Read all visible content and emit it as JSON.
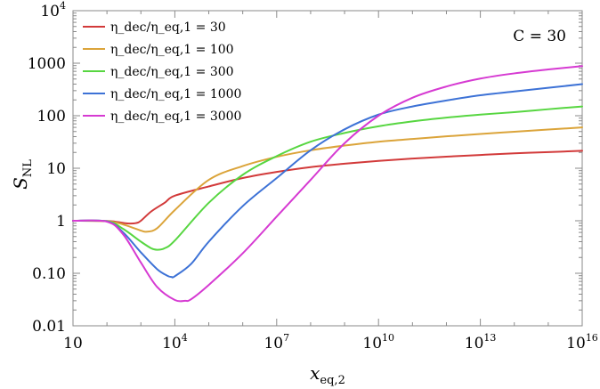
{
  "chart_data": {
    "type": "line",
    "xlabel": "x_eq,2",
    "ylabel": "S_NL",
    "xscale": "log",
    "yscale": "log",
    "xlim": [
      10,
      1e+16
    ],
    "ylim": [
      0.01,
      10000
    ],
    "x_ticks": [
      {
        "value": 10,
        "base": "10",
        "exp": ""
      },
      {
        "value": 10000,
        "base": "10",
        "exp": "4"
      },
      {
        "value": 10000000.0,
        "base": "10",
        "exp": "7"
      },
      {
        "value": 10000000000.0,
        "base": "10",
        "exp": "10"
      },
      {
        "value": 10000000000000.0,
        "base": "10",
        "exp": "13"
      },
      {
        "value": 1e+16,
        "base": "10",
        "exp": "16"
      }
    ],
    "y_ticks": [
      {
        "value": 0.01,
        "base": "0.01",
        "exp": ""
      },
      {
        "value": 0.1,
        "base": "0.10",
        "exp": ""
      },
      {
        "value": 1,
        "base": "1",
        "exp": ""
      },
      {
        "value": 10,
        "base": "10",
        "exp": ""
      },
      {
        "value": 100,
        "base": "100",
        "exp": ""
      },
      {
        "value": 1000,
        "base": "1000",
        "exp": ""
      },
      {
        "value": 10000,
        "base": "10",
        "exp": "4"
      }
    ],
    "legend_position": "top-left",
    "annotation": "C = 30",
    "series": [
      {
        "name": "η_dec/η_eq,1 = 30",
        "color": "#d23a3a",
        "x": [
          10,
          100,
          200,
          400,
          700,
          1000,
          2000,
          5000,
          10000,
          100000.0,
          1000000.0,
          10000000.0,
          100000000.0,
          1000000000.0,
          10000000000.0,
          100000000000.0,
          1000000000000.0,
          10000000000000.0,
          100000000000000.0,
          1000000000000000.0,
          1e+16
        ],
        "y": [
          1.0,
          0.99,
          0.95,
          0.89,
          0.9,
          1.0,
          1.5,
          2.2,
          3.0,
          4.5,
          6.5,
          8.5,
          10.5,
          12.2,
          13.8,
          15.3,
          16.6,
          17.9,
          19.2,
          20.3,
          21.5
        ]
      },
      {
        "name": "η_dec/η_eq,1 = 100",
        "color": "#dba43a",
        "x": [
          10,
          100,
          300,
          1000,
          1500,
          3000,
          10000,
          100000.0,
          1000000.0,
          10000000.0,
          100000000.0,
          1000000000.0,
          10000000000.0,
          100000000000.0,
          1000000000000.0,
          10000000000000.0,
          100000000000000.0,
          1000000000000000.0,
          1e+16
        ],
        "y": [
          1.0,
          0.98,
          0.85,
          0.65,
          0.62,
          0.72,
          1.6,
          6.0,
          11.0,
          16.5,
          22.0,
          27.0,
          32.0,
          36.0,
          40.5,
          45.0,
          49.5,
          54.5,
          60.0
        ]
      },
      {
        "name": "η_dec/η_eq,1 = 300",
        "color": "#57d641",
        "x": [
          10,
          100,
          300,
          1000,
          2000,
          3000,
          5000,
          10000,
          100000.0,
          1000000.0,
          10000000.0,
          100000000.0,
          1000000000.0,
          10000000000.0,
          100000000000.0,
          1000000000000.0,
          10000000000000.0,
          100000000000000.0,
          1000000000000000.0,
          1e+16
        ],
        "y": [
          1.0,
          0.98,
          0.7,
          0.4,
          0.3,
          0.28,
          0.3,
          0.42,
          2.2,
          7.5,
          17.0,
          32.0,
          47.0,
          63.0,
          78.0,
          92.0,
          105.0,
          117.0,
          133.0,
          150.0
        ]
      },
      {
        "name": "η_dec/η_eq,1 = 1000",
        "color": "#3d72d6",
        "x": [
          10,
          100,
          300,
          1000,
          3000,
          6000,
          8000,
          10000,
          30000,
          100000.0,
          1000000.0,
          10000000.0,
          100000000.0,
          1000000000.0,
          10000000000.0,
          100000000000.0,
          1000000000000.0,
          10000000000000.0,
          100000000000000.0,
          1000000000000000.0,
          1e+16
        ],
        "y": [
          1.0,
          0.97,
          0.6,
          0.25,
          0.12,
          0.09,
          0.085,
          0.088,
          0.15,
          0.4,
          1.9,
          6.5,
          22.0,
          55.0,
          105.0,
          150.0,
          195.0,
          245.0,
          290.0,
          340.0,
          400.0
        ]
      },
      {
        "name": "η_dec/η_eq,1 = 3000",
        "color": "#d63ad2",
        "x": [
          10,
          100,
          300,
          1000,
          3000,
          10000,
          20000,
          30000,
          100000.0,
          1000000.0,
          10000000.0,
          100000000.0,
          1000000000.0,
          10000000000.0,
          100000000000.0,
          1000000000000.0,
          10000000000000.0,
          100000000000000.0,
          1000000000000000.0,
          1e+16
        ],
        "y": [
          1.0,
          0.96,
          0.55,
          0.16,
          0.055,
          0.031,
          0.03,
          0.032,
          0.06,
          0.24,
          1.2,
          6.0,
          30.0,
          100.0,
          220.0,
          360.0,
          510.0,
          640.0,
          760.0,
          880.0
        ]
      }
    ]
  }
}
